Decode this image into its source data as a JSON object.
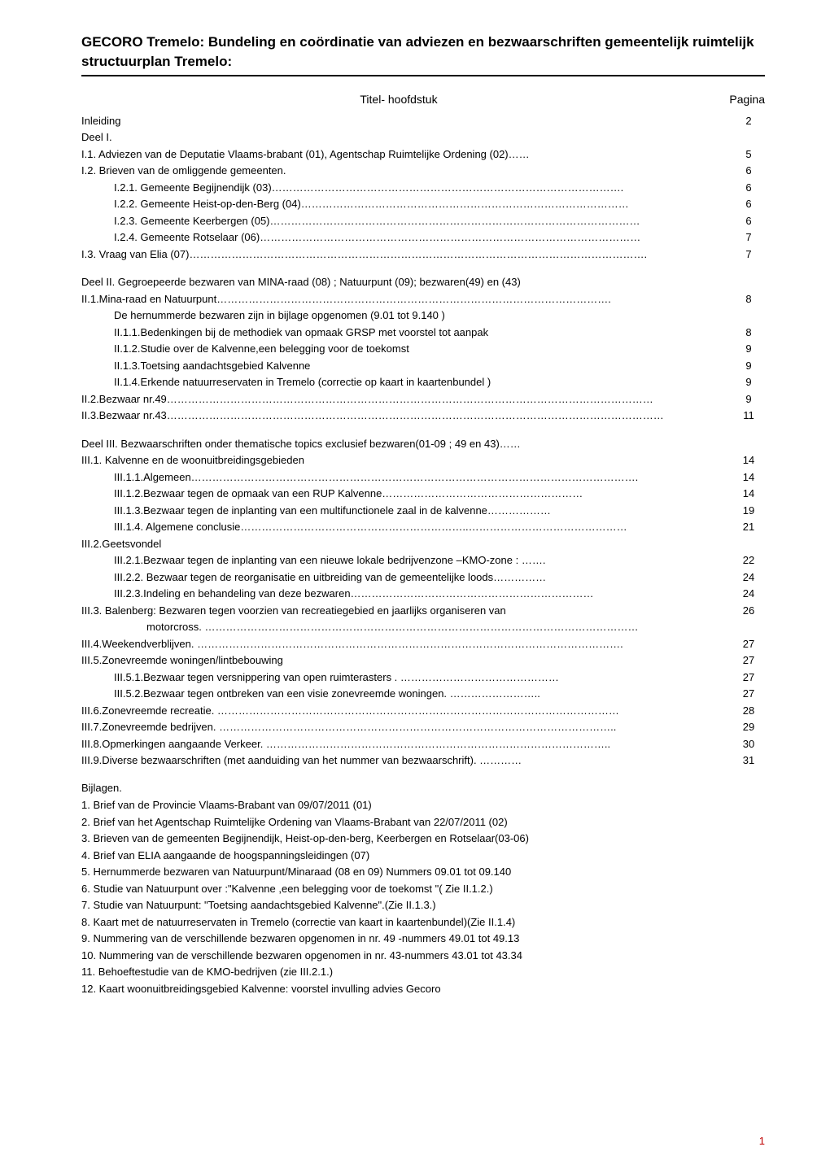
{
  "title": "GECORO Tremelo: Bundeling en coördinatie  van adviezen en bezwaarschriften gemeentelijk ruimtelijk structuurplan Tremelo:",
  "table_header": {
    "title": "Titel- hoofdstuk",
    "page": "Pagina"
  },
  "toc_entries": [
    {
      "label": "Inleiding",
      "indent": 0,
      "page": "2"
    },
    {
      "label": "Deel I.",
      "indent": 0,
      "page": ""
    },
    {
      "label": "I.1. Adviezen van de Deputatie Vlaams-brabant (01), Agentschap Ruimtelijke Ordening (02)……",
      "indent": 0,
      "page": "5"
    },
    {
      "label": "I.2. Brieven van de omliggende gemeenten.",
      "indent": 0,
      "page": "6"
    },
    {
      "label": "I.2.1. Gemeente Begijnendijk  (03)……………………………………………………………………………………….",
      "indent": 1,
      "page": "6"
    },
    {
      "label": "I.2.2. Gemeente Heist-op-den-Berg (04)…………………………………………………………………………………",
      "indent": 1,
      "page": "6"
    },
    {
      "label": "I.2.3. Gemeente Keerbergen (05)……………………………………………………………………………………………",
      "indent": 1,
      "page": "6"
    },
    {
      "label": "I.2.4. Gemeente Rotselaar (06)………………………………………………………………………………………………",
      "indent": 1,
      "page": "7"
    },
    {
      "label": "I.3. Vraag van Elia (07)………………………………………………………………………………………………………………….",
      "indent": 0,
      "page": "7"
    },
    {
      "label": "",
      "indent": 0,
      "page": "",
      "spacer": true
    },
    {
      "label": "Deel II. Gegroepeerde bezwaren van MINA-raad (08) ; Natuurpunt (09); bezwaren(49) en (43)",
      "indent": 0,
      "page": ""
    },
    {
      "label": "II.1.Mina-raad en Natuurpunt………………………………………………………………………………………………….",
      "indent": 0,
      "page": "8"
    },
    {
      "label": "De hernummerde bezwaren zijn in bijlage opgenomen (9.01 tot 9.140 )",
      "indent": 1,
      "page": ""
    },
    {
      "label": "II.1.1.Bedenkingen bij de methodiek van opmaak GRSP met voorstel tot aanpak",
      "indent": 1,
      "page": "8"
    },
    {
      "label": "II.1.2.Studie over de Kalvenne,een belegging voor de toekomst",
      "indent": 1,
      "page": "9"
    },
    {
      "label": "II.1.3.Toetsing aandachtsgebied Kalvenne",
      "indent": 1,
      "page": "9"
    },
    {
      "label": "II.1.4.Erkende natuurreservaten in Tremelo (correctie op kaart in kaartenbundel )",
      "indent": 1,
      "page": "9"
    },
    {
      "label": "II.2.Bezwaar nr.49…………………………………………………………………………………………………………………………",
      "indent": 0,
      "page": "9"
    },
    {
      "label": "II.3.Bezwaar nr.43……………………………………………………………………………………………………………………………",
      "indent": 0,
      "page": "11"
    },
    {
      "label": "",
      "indent": 0,
      "page": "",
      "spacer": true
    },
    {
      "label": "Deel III. Bezwaarschriften  onder thematische topics exclusief bezwaren(01-09 ; 49 en 43)……",
      "indent": 0,
      "page": ""
    },
    {
      "label": "III.1. Kalvenne en de woonuitbreidingsgebieden",
      "indent": 0,
      "page": "14"
    },
    {
      "label": "III.1.1.Algemeen……………………………………………………………………………………………………………….",
      "indent": 1,
      "page": "14"
    },
    {
      "label": "III.1.2.Bezwaar tegen de opmaak van een RUP Kalvenne…………………………………………………",
      "indent": 1,
      "page": "14"
    },
    {
      "label": "III.1.3.Bezwaar tegen de inplanting van een multifunctionele zaal in de kalvenne………………",
      "indent": 1,
      "page": "19"
    },
    {
      "label": "III.1.4. Algemene conclusie………………………………………………………..………………………………………",
      "indent": 1,
      "page": "21"
    },
    {
      "label": "III.2.Geetsvondel",
      "indent": 0,
      "page": ""
    },
    {
      "label": "III.2.1.Bezwaar tegen de inplanting van een nieuwe lokale bedrijvenzone –KMO-zone : …….",
      "indent": 1,
      "page": "22"
    },
    {
      "label": "III.2.2. Bezwaar tegen de reorganisatie en uitbreiding van de gemeentelijke loods……………",
      "indent": 1,
      "page": "24"
    },
    {
      "label": "III.2.3.Indeling  en behandeling van deze bezwaren……………………………………………………………",
      "indent": 1,
      "page": "24"
    },
    {
      "label": "III.3. Balenberg: Bezwaren  tegen voorzien van recreatiegebied en jaarlijks organiseren van",
      "indent": 0,
      "page": "26"
    },
    {
      "label": "motorcross. ……………………………………………………………………………………………………………",
      "indent": 2,
      "page": ""
    },
    {
      "label": "III.4.Weekendverblijven. ………………………………………………………………………………………………………….",
      "indent": 0,
      "page": "27"
    },
    {
      "label": "III.5.Zonevreemde woningen/lintbebouwing",
      "indent": 0,
      "page": "27"
    },
    {
      "label": "III.5.1.Bezwaar tegen versnippering van open ruimterasters . ………………………………………",
      "indent": 1,
      "page": "27"
    },
    {
      "label": "III.5.2.Bezwaar tegen ontbreken van een visie  zonevreemde woningen.  ……………………..",
      "indent": 1,
      "page": "27"
    },
    {
      "label": "III.6.Zonevreemde recreatie. ……………………………………………………………………………………………………",
      "indent": 0,
      "page": "28"
    },
    {
      "label": "III.7.Zonevreemde bedrijven. …………………………………………………………………………………………………..",
      "indent": 0,
      "page": "29"
    },
    {
      "label": "III.8.Opmerkingen aangaande Verkeer. ……………………………………………………………………………………..",
      "indent": 0,
      "page": "30"
    },
    {
      "label": "III.9.Diverse bezwaarschriften (met aanduiding van het nummer van bezwaarschrift).  …………",
      "indent": 0,
      "page": "31"
    }
  ],
  "bijlagen_header": "Bijlagen.",
  "bijlagen": [
    "1. Brief van de Provincie Vlaams-Brabant van 09/07/2011  (01)",
    "2. Brief van het Agentschap Ruimtelijke Ordening van Vlaams-Brabant van 22/07/2011 (02)",
    "3. Brieven van de gemeenten Begijnendijk, Heist-op-den-berg, Keerbergen en Rotselaar(03-06)",
    "4. Brief van  ELIA aangaande de hoogspanningsleidingen (07)",
    "5. Hernummerde bezwaren van Natuurpunt/Minaraad (08 en 09) Nummers 09.01 tot 09.140",
    "6. Studie van Natuurpunt over :\"Kalvenne ,een belegging voor de toekomst \"( Zie II.1.2.)",
    "7. Studie van Natuurpunt: \"Toetsing aandachtsgebied Kalvenne\".(Zie II.1.3.)",
    "8. Kaart met de natuurreservaten  in Tremelo (correctie van kaart in  kaartenbundel)(Zie II.1.4)",
    "9. Nummering van de  verschillende bezwaren opgenomen in  nr. 49 -nummers 49.01 tot 49.13",
    "10. Nummering van de  verschillende bezwaren opgenomen in  nr. 43-nummers 43.01 tot 43.34",
    "11. Behoeftestudie van de KMO-bedrijven (zie III.2.1.)",
    "12. Kaart woonuitbreidingsgebied Kalvenne: voorstel invulling advies Gecoro"
  ],
  "page_number": "1",
  "colors": {
    "text": "#000000",
    "background": "#ffffff",
    "underline": "#000000",
    "page_number": "#c00000"
  }
}
